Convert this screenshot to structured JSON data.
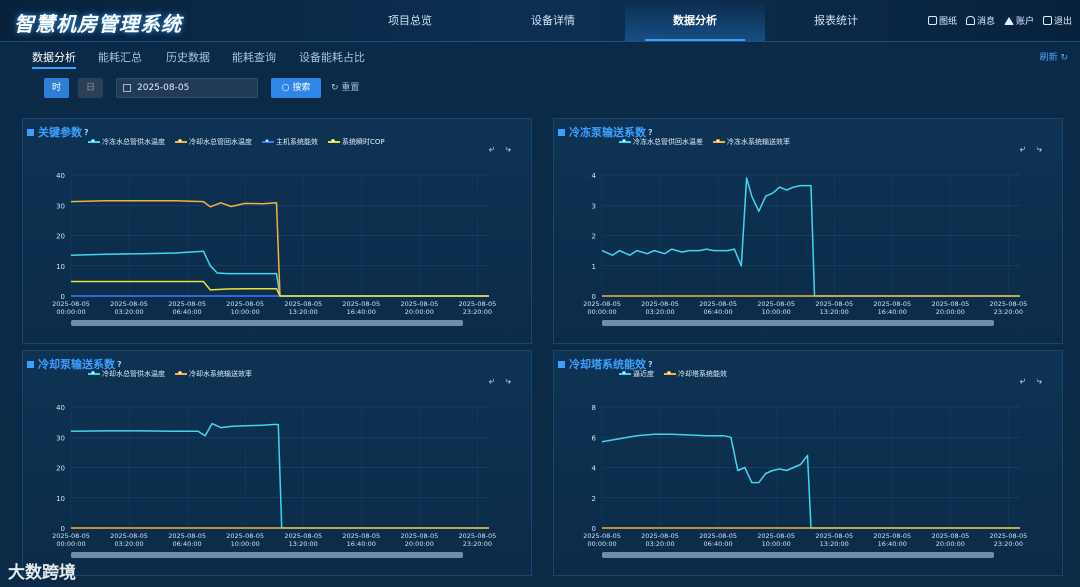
{
  "app": {
    "title": "智慧机房管理系统",
    "nav": [
      "项目总览",
      "设备详情",
      "数据分析",
      "报表统计"
    ],
    "active_nav": "数据分析",
    "tools": [
      {
        "icon": "chart-icon",
        "label": "图纸"
      },
      {
        "icon": "bell-icon",
        "label": "消息"
      },
      {
        "icon": "home-icon",
        "label": "账户"
      },
      {
        "icon": "logout-icon",
        "label": "退出"
      }
    ]
  },
  "subtabs": [
    "数据分析",
    "能耗汇总",
    "历史数据",
    "能耗查询",
    "设备能耗占比"
  ],
  "refresh_label": "刷新",
  "filters": {
    "time_label": "时",
    "day_label": "日",
    "date_value": "2025-08-05",
    "search_label": "搜索",
    "reset_label": "重置"
  },
  "panel_tools": "⤶ ⤷",
  "watermark": "大数跨境",
  "colors": {
    "cyan": "#3fd7ee",
    "orange": "#f1b43b",
    "blue": "#3c7bff",
    "yellow": "#e8e33a"
  },
  "x_ticks": [
    [
      "2025-08-05",
      "00:00:00"
    ],
    [
      "2025-08-05",
      "03:20:00"
    ],
    [
      "2025-08-05",
      "06:40:00"
    ],
    [
      "2025-08-05",
      "10:00:00"
    ],
    [
      "2025-08-05",
      "13:20:00"
    ],
    [
      "2025-08-05",
      "16:40:00"
    ],
    [
      "2025-08-05",
      "20:00:00"
    ],
    [
      "2025-08-05",
      "23:20:00"
    ]
  ],
  "chart_data": [
    {
      "title": "关键参数",
      "type": "line",
      "ylim": [
        0,
        40
      ],
      "y_ticks": [
        0,
        10,
        20,
        30,
        40
      ],
      "series": [
        {
          "name": "冷冻水总管供水温度",
          "color": "#3fd7ee",
          "x": [
            0,
            2,
            4,
            6,
            7.6,
            8,
            8.4,
            9,
            10,
            11,
            11.8,
            12,
            12.2,
            24
          ],
          "values": [
            13.5,
            13.8,
            14,
            14.2,
            14.8,
            10,
            7.6,
            7.4,
            7.4,
            7.4,
            7.4,
            0,
            0,
            0
          ]
        },
        {
          "name": "冷却水总管回水温度",
          "color": "#f1b43b",
          "x": [
            0,
            2,
            4,
            6,
            7.6,
            8,
            8.6,
            9.2,
            10,
            11,
            11.8,
            12,
            12.2,
            24
          ],
          "values": [
            31.2,
            31.5,
            31.5,
            31.5,
            31.2,
            29.5,
            30.8,
            29.6,
            30.6,
            30.5,
            30.8,
            0,
            0,
            0
          ]
        },
        {
          "name": "主机系统能效",
          "color": "#3c7bff",
          "x": [
            0,
            12,
            24
          ],
          "values": [
            0,
            0,
            0
          ]
        },
        {
          "name": "系统瞬时COP",
          "color": "#e8e33a",
          "x": [
            0,
            2,
            4,
            6,
            7.6,
            8,
            9,
            10,
            11,
            11.8,
            12,
            12.2,
            24
          ],
          "values": [
            4.8,
            4.8,
            4.8,
            4.8,
            4.8,
            2.0,
            2.3,
            2.4,
            2.4,
            2.4,
            0,
            0,
            0
          ]
        }
      ]
    },
    {
      "title": "冷冻泵输送系数",
      "type": "line",
      "ylim": [
        0,
        4
      ],
      "y_ticks": [
        0,
        1,
        2,
        3,
        4
      ],
      "series": [
        {
          "name": "冷冻水总管供回水温差",
          "color": "#3fd7ee",
          "x": [
            0,
            0.6,
            1,
            1.6,
            2,
            2.6,
            3,
            3.6,
            4,
            4.6,
            5,
            5.6,
            6,
            6.4,
            6.8,
            7.2,
            7.6,
            8,
            8.3,
            8.6,
            9,
            9.4,
            9.8,
            10.2,
            10.6,
            11,
            11.4,
            11.8,
            12,
            12.2,
            24
          ],
          "values": [
            1.5,
            1.35,
            1.5,
            1.35,
            1.5,
            1.4,
            1.5,
            1.4,
            1.55,
            1.45,
            1.5,
            1.5,
            1.55,
            1.5,
            1.5,
            1.5,
            1.55,
            1.0,
            3.9,
            3.3,
            2.8,
            3.3,
            3.4,
            3.6,
            3.5,
            3.6,
            3.65,
            3.65,
            3.65,
            0,
            0
          ]
        },
        {
          "name": "冷冻水系统输送效率",
          "color": "#f1b43b",
          "x": [
            0,
            24
          ],
          "values": [
            0,
            0
          ]
        }
      ]
    },
    {
      "title": "冷却泵输送系数",
      "type": "line",
      "ylim": [
        0,
        40
      ],
      "y_ticks": [
        0,
        10,
        20,
        30,
        40
      ],
      "series": [
        {
          "name": "冷却水总管供水温度",
          "color": "#3fd7ee",
          "x": [
            0,
            2,
            4,
            6,
            7.3,
            7.7,
            8.1,
            8.6,
            9.2,
            10,
            11,
            11.6,
            11.9,
            12.1,
            24
          ],
          "values": [
            32,
            32.1,
            32.1,
            32,
            32,
            30.5,
            34.5,
            33.2,
            33.6,
            33.8,
            34,
            34.2,
            34.2,
            0,
            0
          ]
        },
        {
          "name": "冷却水系统输送效率",
          "color": "#f1b43b",
          "x": [
            0,
            24
          ],
          "values": [
            0,
            0
          ]
        }
      ]
    },
    {
      "title": "冷却塔系统能效",
      "type": "line",
      "ylim": [
        0,
        8
      ],
      "y_ticks": [
        0,
        2,
        4,
        6,
        8
      ],
      "series": [
        {
          "name": "逼近度",
          "color": "#3fd7ee",
          "x": [
            0,
            1,
            2,
            3,
            4,
            5,
            6,
            7,
            7.4,
            7.8,
            8.2,
            8.6,
            9.0,
            9.4,
            9.8,
            10.2,
            10.6,
            11,
            11.4,
            11.8,
            12,
            12.2,
            24
          ],
          "values": [
            5.7,
            5.9,
            6.1,
            6.2,
            6.2,
            6.15,
            6.1,
            6.1,
            6.0,
            3.8,
            4.0,
            3.0,
            3.0,
            3.6,
            3.8,
            3.9,
            3.8,
            4.0,
            4.2,
            4.8,
            0,
            0,
            0
          ]
        },
        {
          "name": "冷却塔系统能效",
          "color": "#f1b43b",
          "x": [
            0,
            24
          ],
          "values": [
            0,
            0
          ]
        }
      ]
    }
  ]
}
